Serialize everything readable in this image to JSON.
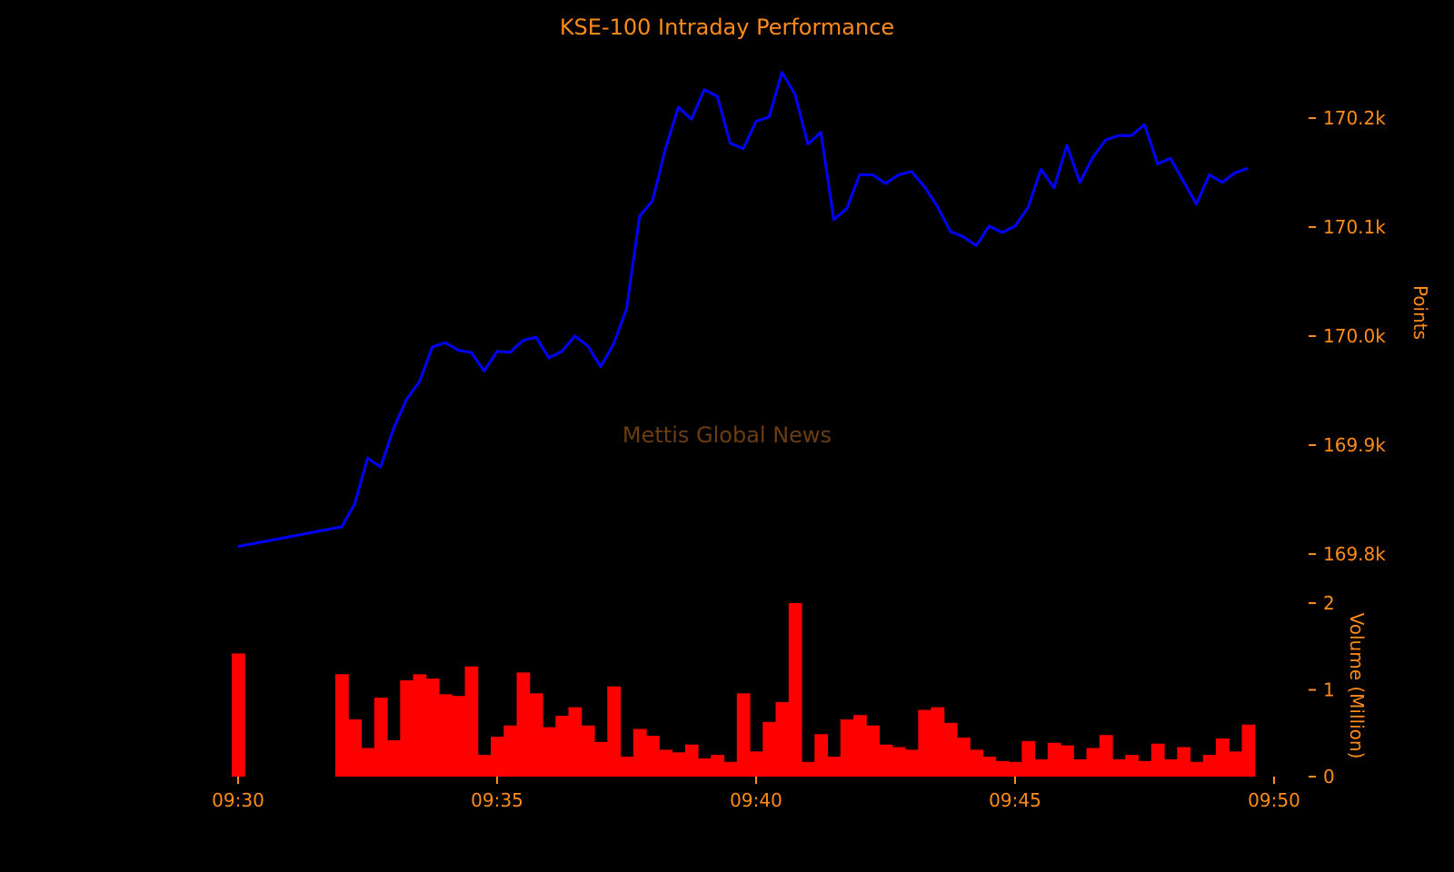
{
  "chart_data": [
    {
      "type": "line",
      "title": "KSE-100 Intraday Performance",
      "ylabel": "Points",
      "xlabel": "",
      "watermark": "Mettis Global News",
      "ylim": [
        169785,
        170250
      ],
      "y_ticks": [
        169800,
        169900,
        170000,
        170100,
        170200
      ],
      "y_tick_labels": [
        "169.8k",
        "169.9k",
        "170.0k",
        "170.1k",
        "170.2k"
      ],
      "line_color": "#0000ff",
      "x_unit": "minutes",
      "x": [
        0.0,
        4.0,
        4.5,
        5.0,
        5.5,
        6.0,
        6.5,
        7.0,
        7.5,
        8.0,
        8.5,
        9.0,
        9.5,
        10.0,
        10.5,
        11.0,
        11.5,
        12.0,
        12.5,
        13.0,
        13.5,
        14.0,
        14.5,
        15.0,
        15.5,
        16.0,
        16.5,
        17.0,
        17.5,
        18.0,
        18.5,
        19.0,
        19.5,
        20.0,
        20.5,
        21.0,
        21.5,
        22.0,
        22.5,
        23.0,
        23.5,
        24.0,
        24.5,
        25.0,
        25.5,
        26.0,
        26.5,
        27.0,
        27.5,
        28.0,
        28.5,
        29.0,
        29.5,
        30.0,
        30.5,
        31.0,
        31.5,
        32.0,
        32.5,
        33.0,
        33.5,
        34.0,
        34.5,
        35.0,
        35.5,
        36.0,
        36.5,
        37.0,
        37.5,
        38.0,
        38.5,
        39.0
      ],
      "values": [
        169807,
        169825,
        169846,
        169888,
        169880,
        169915,
        169942,
        169958,
        169990,
        169994,
        169987,
        169985,
        169968,
        169986,
        169985,
        169996,
        169999,
        169980,
        169986,
        170000,
        169991,
        169972,
        169993,
        170025,
        170110,
        170124,
        170172,
        170210,
        170199,
        170226,
        170220,
        170177,
        170172,
        170197,
        170201,
        170242,
        170222,
        170176,
        170187,
        170107,
        170117,
        170148,
        170148,
        170140,
        170148,
        170151,
        170137,
        170119,
        170096,
        170091,
        170083,
        170101,
        170095,
        170101,
        170118,
        170153,
        170136,
        170175,
        170141,
        170164,
        170180,
        170184,
        170184,
        170194,
        170158,
        170163,
        170142,
        170121,
        170148,
        170141,
        170150,
        170154
      ]
    },
    {
      "type": "bar",
      "ylabel": "Volume (Million)",
      "ylim": [
        0,
        2.0
      ],
      "y_ticks": [
        0,
        1,
        2
      ],
      "y_tick_labels": [
        "0",
        "1",
        "2"
      ],
      "bar_color": "#ff0000",
      "x_unit": "minutes",
      "x_ticks": [
        0,
        10,
        20,
        30,
        40
      ],
      "x_tick_labels": [
        "09:30",
        "09:35",
        "09:40",
        "09:45",
        "09:50"
      ],
      "x": [
        0.0,
        4.0,
        4.5,
        5.0,
        5.5,
        6.0,
        6.5,
        7.0,
        7.5,
        8.0,
        8.5,
        9.0,
        9.5,
        10.0,
        10.5,
        11.0,
        11.5,
        12.0,
        12.5,
        13.0,
        13.5,
        14.0,
        14.5,
        15.0,
        15.5,
        16.0,
        16.5,
        17.0,
        17.5,
        18.0,
        18.5,
        19.0,
        19.5,
        20.0,
        20.5,
        21.0,
        21.5,
        22.0,
        22.5,
        23.0,
        23.5,
        24.0,
        24.5,
        25.0,
        25.5,
        26.0,
        26.5,
        27.0,
        27.5,
        28.0,
        28.5,
        29.0,
        29.5,
        30.0,
        30.5,
        31.0,
        31.5,
        32.0,
        32.5,
        33.0,
        33.5,
        34.0,
        34.5,
        35.0,
        35.5,
        36.0,
        36.5,
        37.0,
        37.5,
        38.0,
        38.5,
        39.0
      ],
      "values": [
        1.42,
        1.18,
        0.66,
        0.33,
        0.91,
        0.42,
        1.11,
        1.18,
        1.13,
        0.95,
        0.93,
        1.27,
        0.25,
        0.46,
        0.59,
        1.2,
        0.96,
        0.57,
        0.7,
        0.8,
        0.59,
        0.4,
        1.04,
        0.23,
        0.55,
        0.47,
        0.31,
        0.28,
        0.37,
        0.21,
        0.25,
        0.17,
        0.96,
        0.29,
        0.63,
        0.86,
        2.0,
        0.17,
        0.49,
        0.23,
        0.66,
        0.71,
        0.59,
        0.37,
        0.34,
        0.31,
        0.77,
        0.8,
        0.62,
        0.45,
        0.31,
        0.23,
        0.18,
        0.17,
        0.41,
        0.2,
        0.39,
        0.36,
        0.2,
        0.33,
        0.48,
        0.2,
        0.25,
        0.18,
        0.38,
        0.2,
        0.34,
        0.17,
        0.25,
        0.44,
        0.29,
        0.6
      ]
    }
  ]
}
